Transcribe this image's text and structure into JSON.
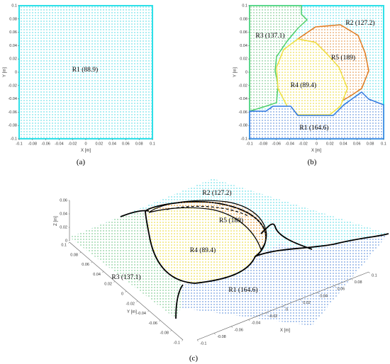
{
  "panels": {
    "a": {
      "label": "(a)",
      "xlabel": "X [m]",
      "ylabel": "Y [m]",
      "xticks": [
        -0.1,
        -0.08,
        -0.06,
        -0.04,
        -0.02,
        0,
        0.02,
        0.04,
        0.06,
        0.08,
        0.1
      ],
      "yticks": [
        -0.1,
        -0.08,
        -0.06,
        -0.04,
        -0.02,
        0,
        0.02,
        0.04,
        0.06,
        0.08,
        0.1
      ],
      "regions": [
        "R1 (88.9)"
      ]
    },
    "b": {
      "label": "(b)",
      "xlabel": "X [m]",
      "ylabel": "Y [m]",
      "xticks": [
        -0.1,
        -0.08,
        -0.06,
        -0.04,
        -0.02,
        0,
        0.02,
        0.04,
        0.06,
        0.08,
        0.1
      ],
      "yticks": [
        -0.1,
        -0.08,
        -0.06,
        -0.04,
        -0.02,
        0,
        0.02,
        0.04,
        0.06,
        0.08,
        0.1
      ],
      "regions": [
        "R1 (164.6)",
        "R2 (127.2)",
        "R3 (137.1)",
        "R4 (89.4)",
        "R5 (189)"
      ]
    },
    "c": {
      "label": "(c)",
      "xlabel": "X [m]",
      "ylabel": "Y [m]",
      "zlabel": "Z [m]",
      "xticks": [
        -0.1,
        -0.08,
        -0.06,
        -0.04,
        -0.02,
        0,
        0.02,
        0.04,
        0.06,
        0.08,
        0.1
      ],
      "yticks": [
        0.1,
        0.08,
        0.06,
        0.04,
        0.02,
        0,
        -0.02,
        -0.04,
        -0.06,
        -0.08,
        -0.1
      ],
      "zticks": [
        0,
        0.02,
        0.04,
        0.06
      ],
      "regions": [
        "R1 (164.6)",
        "R2 (127.2)",
        "R3 (137.1)",
        "R4 (89.4)",
        "R5 (189)"
      ]
    }
  }
}
